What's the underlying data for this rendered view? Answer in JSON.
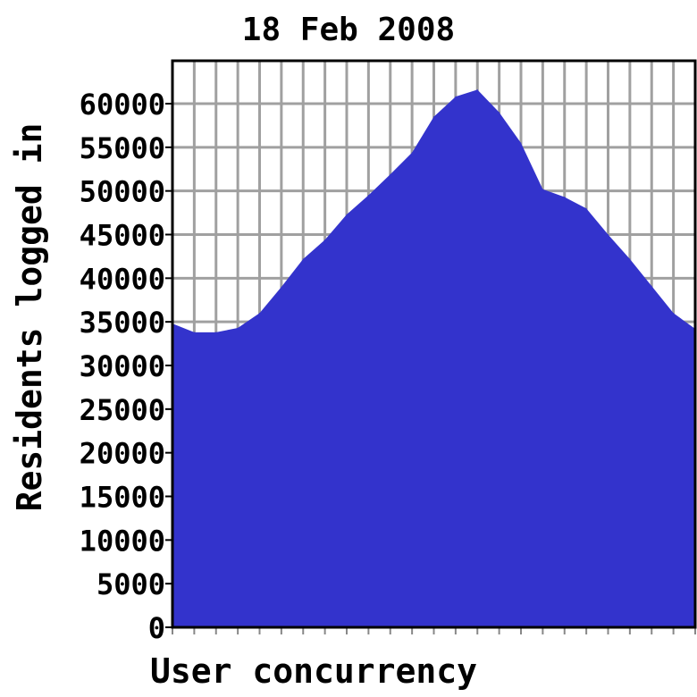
{
  "chart_data": {
    "type": "area",
    "title": "18 Feb 2008",
    "xlabel": "User concurrency",
    "ylabel": "Residents logged in",
    "ylim": [
      0,
      65000
    ],
    "yticks": [
      "0",
      "5000",
      "10000",
      "15000",
      "20000",
      "25000",
      "30000",
      "35000",
      "40000",
      "45000",
      "50000",
      "55000",
      "60000"
    ],
    "x_hours": [
      0,
      1,
      2,
      3,
      4,
      5,
      6,
      7,
      8,
      9,
      10,
      11,
      12,
      13,
      14,
      15,
      16,
      17,
      18,
      19,
      20,
      21,
      22,
      23,
      24
    ],
    "values": [
      34800,
      33800,
      33800,
      34300,
      36000,
      39000,
      42200,
      44400,
      47300,
      49500,
      51900,
      54400,
      58500,
      60800,
      61600,
      59000,
      55500,
      50200,
      49300,
      48000,
      45000,
      42200,
      39100,
      36000,
      34200
    ],
    "grid": true,
    "fill_color": "#3333cc",
    "grid_color": "#a0a0a0"
  }
}
